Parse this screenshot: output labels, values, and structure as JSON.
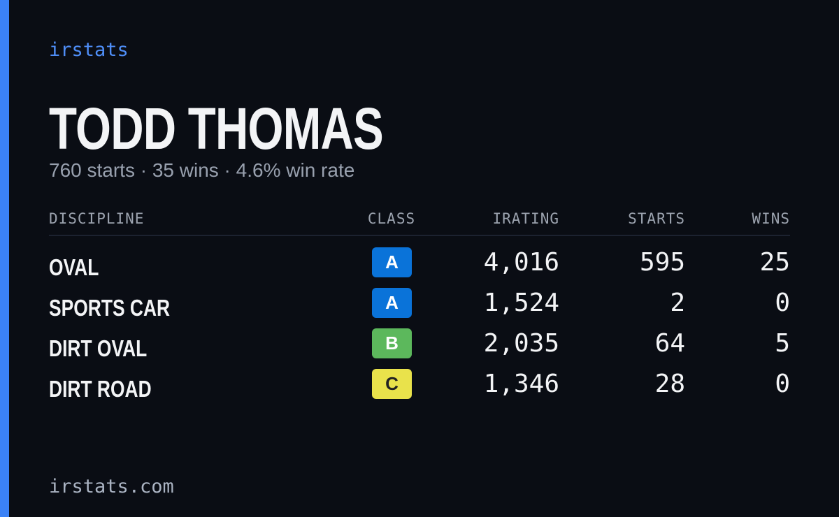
{
  "brand": "irstats",
  "driver": {
    "name": "TODD THOMAS",
    "summary": "760 starts · 35 wins · 4.6% win rate"
  },
  "table": {
    "headers": [
      "DISCIPLINE",
      "CLASS",
      "IRATING",
      "STARTS",
      "WINS"
    ],
    "rows": [
      [
        "OVAL",
        "A",
        "4,016",
        "595",
        "25"
      ],
      [
        "SPORTS CAR",
        "A",
        "1,524",
        "2",
        "0"
      ],
      [
        "DIRT OVAL",
        "B",
        "2,035",
        "64",
        "5"
      ],
      [
        "DIRT ROAD",
        "C",
        "1,346",
        "28",
        "0"
      ]
    ]
  },
  "footer": "irstats.com"
}
